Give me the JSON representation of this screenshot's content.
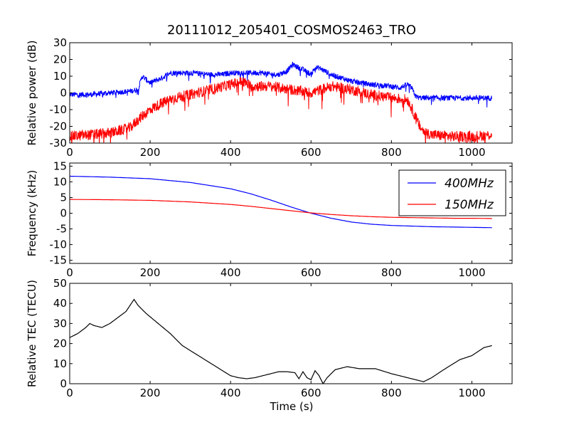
{
  "figure": {
    "title": "20111012_205401_COSMOS2463_TRO"
  },
  "chart_data": [
    {
      "type": "line",
      "ylabel": "Relative power (dB)",
      "xlabel": "",
      "xlim": [
        0,
        1100
      ],
      "ylim": [
        -30,
        30
      ],
      "xticks": [
        0,
        200,
        400,
        600,
        800,
        1000
      ],
      "yticks": [
        -30,
        -20,
        -10,
        0,
        10,
        20,
        30
      ],
      "grid": false,
      "series": [
        {
          "color": "#0000ff",
          "noise": 1.6,
          "x": [
            0,
            50,
            100,
            150,
            170,
            180,
            190,
            200,
            230,
            250,
            300,
            350,
            380,
            400,
            450,
            480,
            500,
            520,
            540,
            555,
            570,
            580,
            600,
            610,
            620,
            650,
            700,
            750,
            800,
            820,
            840,
            850,
            860,
            870,
            900,
            950,
            1000,
            1050
          ],
          "y": [
            -1,
            -1,
            0,
            1,
            2,
            10,
            8,
            6,
            9,
            12,
            12,
            11,
            11,
            12,
            12,
            12,
            11,
            11,
            13,
            17,
            15,
            14,
            11,
            15,
            15,
            11,
            7,
            5,
            4,
            3,
            5,
            3,
            -2,
            -3,
            -3,
            -3,
            -3,
            -3
          ]
        },
        {
          "color": "#ff0000",
          "noise": 3.2,
          "x": [
            0,
            50,
            100,
            150,
            170,
            200,
            230,
            260,
            300,
            350,
            400,
            430,
            450,
            500,
            550,
            600,
            650,
            700,
            750,
            800,
            840,
            850,
            870,
            880,
            900,
            950,
            1000,
            1050
          ],
          "y": [
            -26,
            -25,
            -24,
            -21,
            -16,
            -10,
            -6,
            -3,
            -1,
            2,
            5,
            7,
            4,
            4,
            2,
            0,
            4,
            2,
            -1,
            -3,
            -4,
            -9,
            -20,
            -23,
            -25,
            -26,
            -26,
            -25
          ]
        }
      ]
    },
    {
      "type": "line",
      "ylabel": "Frequency (kHz)",
      "xlabel": "",
      "xlim": [
        0,
        1100
      ],
      "ylim": [
        -16,
        16
      ],
      "xticks": [
        0,
        200,
        400,
        600,
        800,
        1000
      ],
      "yticks": [
        -15,
        -10,
        -5,
        0,
        5,
        10,
        15
      ],
      "grid": false,
      "legend": "top-right",
      "series": [
        {
          "name": "400MHz",
          "color": "#0000ff",
          "x": [
            0,
            100,
            200,
            300,
            400,
            450,
            500,
            550,
            600,
            650,
            700,
            750,
            800,
            850,
            900,
            950,
            1000,
            1050
          ],
          "y": [
            11.8,
            11.5,
            11.0,
            9.8,
            7.8,
            6.2,
            4.2,
            2.0,
            0.0,
            -1.6,
            -2.8,
            -3.5,
            -3.9,
            -4.1,
            -4.3,
            -4.4,
            -4.5,
            -4.6
          ]
        },
        {
          "name": "150MHz",
          "color": "#ff0000",
          "x": [
            0,
            100,
            200,
            300,
            400,
            450,
            500,
            550,
            600,
            650,
            700,
            750,
            800,
            850,
            900,
            950,
            1000,
            1050
          ],
          "y": [
            4.4,
            4.3,
            4.1,
            3.6,
            2.8,
            2.2,
            1.5,
            0.8,
            0.1,
            -0.4,
            -0.8,
            -1.1,
            -1.3,
            -1.4,
            -1.5,
            -1.6,
            -1.6,
            -1.7
          ]
        }
      ]
    },
    {
      "type": "line",
      "ylabel": "Relative TEC (TECU)",
      "xlabel": "Time (s)",
      "xlim": [
        0,
        1100
      ],
      "ylim": [
        0,
        50
      ],
      "xticks": [
        0,
        200,
        400,
        600,
        800,
        1000
      ],
      "yticks": [
        0,
        10,
        20,
        30,
        40,
        50
      ],
      "grid": false,
      "series": [
        {
          "color": "#000000",
          "x": [
            0,
            20,
            40,
            50,
            60,
            80,
            100,
            120,
            140,
            160,
            170,
            190,
            220,
            250,
            280,
            320,
            360,
            400,
            420,
            440,
            460,
            480,
            500,
            520,
            540,
            560,
            570,
            580,
            590,
            600,
            610,
            620,
            630,
            640,
            660,
            690,
            720,
            760,
            800,
            840,
            860,
            880,
            900,
            930,
            970,
            1000,
            1030,
            1050
          ],
          "y": [
            23,
            25,
            28,
            30,
            29,
            28,
            30,
            33,
            36,
            42,
            39,
            35,
            30,
            25,
            19,
            14,
            9,
            4,
            3,
            2.5,
            3,
            4,
            5,
            6,
            6,
            5.5,
            2.5,
            6,
            3,
            2,
            6.5,
            4,
            0,
            3,
            7,
            8.5,
            7.5,
            7.5,
            5,
            3,
            2,
            1,
            3,
            7,
            12,
            14,
            18,
            19
          ]
        }
      ]
    }
  ]
}
